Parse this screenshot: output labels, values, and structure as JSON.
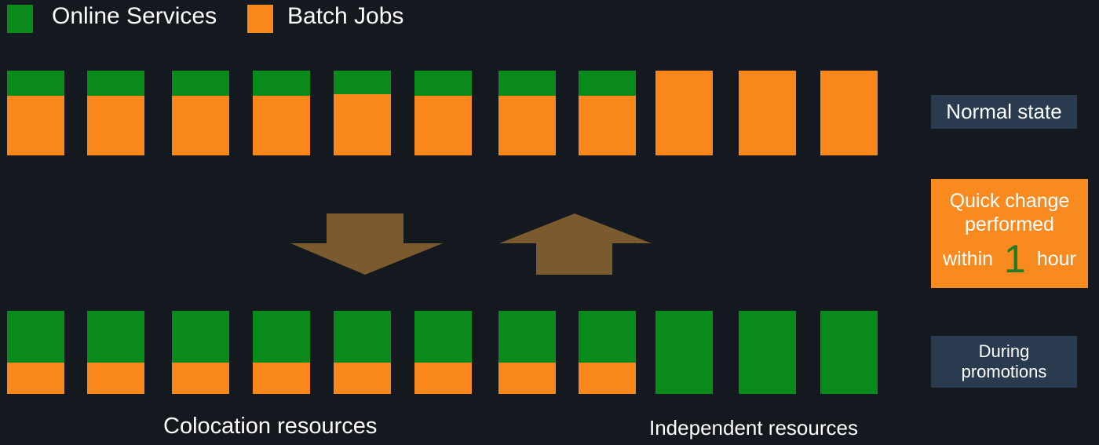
{
  "colors": {
    "online": "#0a8a1a",
    "batch": "#fa871c",
    "arrow": "#7a5a2e",
    "label_bg": "#2a3b4f",
    "quick_bg": "#f98a1f",
    "highlight_number": "#1c7f25"
  },
  "legend": {
    "items": [
      {
        "label": "Online Services",
        "color": "#0a8a1a"
      },
      {
        "label": "Batch Jobs",
        "color": "#fa871c"
      }
    ]
  },
  "rows": {
    "normal": {
      "label": "Normal state",
      "columns": [
        {
          "online": 0.3,
          "batch": 0.7
        },
        {
          "online": 0.3,
          "batch": 0.7
        },
        {
          "online": 0.3,
          "batch": 0.7
        },
        {
          "online": 0.3,
          "batch": 0.7
        },
        {
          "online": 0.28,
          "batch": 0.72
        },
        {
          "online": 0.3,
          "batch": 0.7
        },
        {
          "online": 0.3,
          "batch": 0.7
        },
        {
          "online": 0.3,
          "batch": 0.7
        },
        {
          "online": 0,
          "batch": 1
        },
        {
          "online": 0,
          "batch": 1
        },
        {
          "online": 0,
          "batch": 1
        }
      ]
    },
    "promotion": {
      "label_line1": "During",
      "label_line2": "promotions",
      "columns": [
        {
          "online": 0.62,
          "batch": 0.38
        },
        {
          "online": 0.62,
          "batch": 0.38
        },
        {
          "online": 0.62,
          "batch": 0.38
        },
        {
          "online": 0.62,
          "batch": 0.38
        },
        {
          "online": 0.62,
          "batch": 0.38
        },
        {
          "online": 0.62,
          "batch": 0.38
        },
        {
          "online": 0.62,
          "batch": 0.38
        },
        {
          "online": 0.62,
          "batch": 0.38
        },
        {
          "online": 1,
          "batch": 0
        },
        {
          "online": 1,
          "batch": 0
        },
        {
          "online": 1,
          "batch": 0
        }
      ]
    }
  },
  "quick_change": {
    "line1": "Quick change",
    "line2": "performed",
    "prefix": "within",
    "number": "1",
    "suffix": "hour"
  },
  "footer": {
    "colocation": "Colocation resources",
    "independent": "Independent resources"
  }
}
